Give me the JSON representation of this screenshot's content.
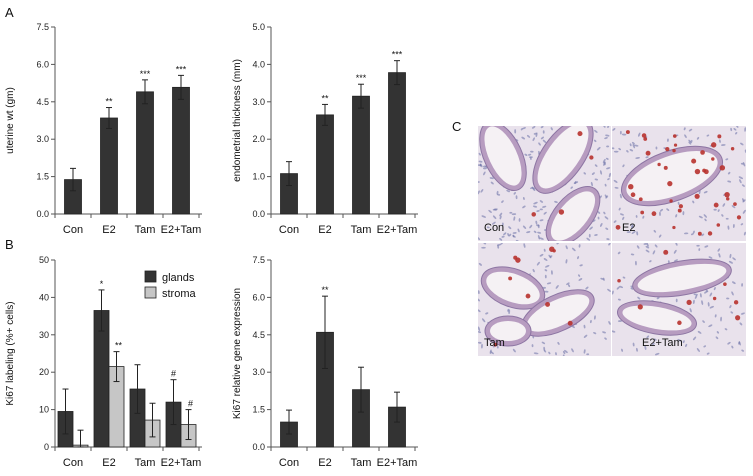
{
  "panels": {
    "A": "A",
    "B": "B",
    "C": "C"
  },
  "chart_data": [
    {
      "id": "uterine_wt",
      "type": "bar",
      "ylabel": "uterine wt (gm)",
      "ylim": [
        0,
        7.5
      ],
      "yticks": [
        "0.0",
        "1.5",
        "3.0",
        "4.5",
        "6.0",
        "7.5"
      ],
      "categories": [
        "Con",
        "E2",
        "Tam",
        "E2+Tam"
      ],
      "series": [
        {
          "values": [
            1.38,
            3.85,
            4.9,
            5.08
          ],
          "errors": [
            0.45,
            0.42,
            0.48,
            0.48
          ],
          "significance": [
            "",
            "**",
            "***",
            "***"
          ],
          "color": "#333333"
        }
      ]
    },
    {
      "id": "endometrial_thickness",
      "type": "bar",
      "ylabel": "endometrial thickness (mm)",
      "ylim": [
        0,
        5
      ],
      "yticks": [
        "0.0",
        "1.0",
        "2.0",
        "3.0",
        "4.0",
        "5.0"
      ],
      "categories": [
        "Con",
        "E2",
        "Tam",
        "E2+Tam"
      ],
      "series": [
        {
          "values": [
            1.08,
            2.65,
            3.15,
            3.78
          ],
          "errors": [
            0.32,
            0.28,
            0.32,
            0.32
          ],
          "significance": [
            "",
            "**",
            "***",
            "***"
          ],
          "color": "#333333"
        }
      ]
    },
    {
      "id": "ki67_labeling",
      "type": "bar",
      "ylabel": "Ki67 labeling (%+ cells)",
      "ylim": [
        0,
        50
      ],
      "yticks": [
        "0",
        "10",
        "20",
        "30",
        "40",
        "50"
      ],
      "categories": [
        "Con",
        "E2",
        "Tam",
        "E2+Tam"
      ],
      "legend_position": "top-right",
      "series": [
        {
          "name": "glands",
          "values": [
            9.5,
            36.5,
            15.5,
            12.0
          ],
          "errors": [
            6.0,
            5.5,
            6.5,
            6.0
          ],
          "significance": [
            "",
            "*",
            "",
            "#"
          ],
          "color": "#333333"
        },
        {
          "name": "stroma",
          "values": [
            0.5,
            21.5,
            7.2,
            6.0
          ],
          "errors": [
            4.0,
            4.0,
            4.5,
            4.0
          ],
          "significance": [
            "",
            "**",
            "",
            "#"
          ],
          "color": "#c6c6c6"
        }
      ]
    },
    {
      "id": "ki67_expression",
      "type": "bar",
      "ylabel": "Ki67 relative gene expression",
      "ylim": [
        0,
        7.5
      ],
      "yticks": [
        "0.0",
        "1.5",
        "3.0",
        "4.5",
        "6.0",
        "7.5"
      ],
      "categories": [
        "Con",
        "E2",
        "Tam",
        "E2+Tam"
      ],
      "series": [
        {
          "values": [
            1.0,
            4.6,
            2.3,
            1.6
          ],
          "errors": [
            0.48,
            1.45,
            0.9,
            0.6
          ],
          "significance": [
            "",
            "**",
            "",
            ""
          ],
          "color": "#333333"
        }
      ]
    }
  ],
  "micrographs": {
    "labels": [
      "Con",
      "E2",
      "Tam",
      "E2+Tam"
    ],
    "background": "#e9e2ec",
    "cell_color": "#6a6fa6",
    "stain_color": "#b8322e"
  }
}
